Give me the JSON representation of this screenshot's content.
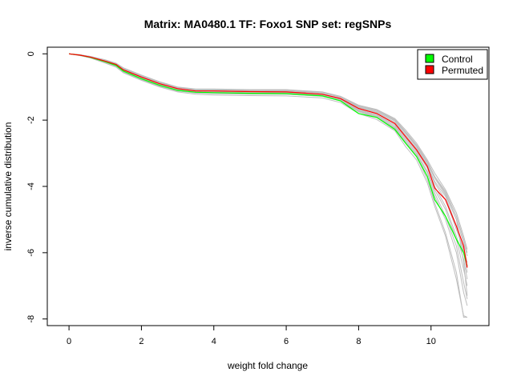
{
  "chart_data": {
    "type": "line",
    "title": "Matrix: MA0480.1 TF: Foxo1 SNP set: regSNPs",
    "xlabel": "weight fold change",
    "ylabel": "inverse cumulative distribution",
    "xlim": [
      -0.6,
      11.6
    ],
    "ylim": [
      -8.2,
      0.2
    ],
    "xticks": [
      0,
      2,
      4,
      6,
      8,
      10
    ],
    "yticks": [
      0,
      -2,
      -4,
      -6,
      -8
    ],
    "grid": false,
    "legend_position": "top-right",
    "legend": [
      {
        "label": "Control",
        "color": "#00ff00"
      },
      {
        "label": "Permuted",
        "color": "#ff0000"
      }
    ],
    "background_series": {
      "color": "#bebebe",
      "x": [
        0,
        0.3,
        0.6,
        1.0,
        1.3,
        1.5,
        2.0,
        2.5,
        3.0,
        3.5,
        4.0,
        5.0,
        6.0,
        7.0,
        7.5,
        8.0,
        8.5,
        9.0,
        9.3,
        9.6,
        9.9,
        10.1,
        10.4,
        10.7,
        10.9,
        11.0
      ],
      "lines": [
        [
          0,
          -0.04,
          -0.1,
          -0.22,
          -0.32,
          -0.48,
          -0.7,
          -0.9,
          -1.05,
          -1.12,
          -1.12,
          -1.14,
          -1.15,
          -1.22,
          -1.35,
          -1.65,
          -1.8,
          -2.1,
          -2.5,
          -2.9,
          -3.4,
          -3.9,
          -4.4,
          -5.3,
          -5.9,
          -6.3
        ],
        [
          0,
          -0.04,
          -0.12,
          -0.26,
          -0.38,
          -0.55,
          -0.78,
          -0.98,
          -1.12,
          -1.18,
          -1.2,
          -1.22,
          -1.22,
          -1.28,
          -1.42,
          -1.75,
          -1.92,
          -2.25,
          -2.7,
          -3.1,
          -3.7,
          -4.3,
          -5.0,
          -6.0,
          -7.2,
          -7.6
        ],
        [
          0,
          -0.03,
          -0.08,
          -0.18,
          -0.28,
          -0.42,
          -0.64,
          -0.84,
          -1.0,
          -1.06,
          -1.06,
          -1.08,
          -1.08,
          -1.15,
          -1.28,
          -1.55,
          -1.68,
          -1.95,
          -2.3,
          -2.7,
          -3.2,
          -3.6,
          -4.1,
          -4.8,
          -5.5,
          -5.9
        ],
        [
          0,
          -0.05,
          -0.11,
          -0.24,
          -0.35,
          -0.5,
          -0.74,
          -0.94,
          -1.08,
          -1.15,
          -1.16,
          -1.18,
          -1.19,
          -1.25,
          -1.38,
          -1.7,
          -1.86,
          -2.18,
          -2.6,
          -3.0,
          -3.55,
          -4.1,
          -4.7,
          -5.6,
          -6.5,
          -7.0
        ],
        [
          0,
          -0.03,
          -0.09,
          -0.2,
          -0.3,
          -0.45,
          -0.67,
          -0.87,
          -1.02,
          -1.09,
          -1.09,
          -1.11,
          -1.12,
          -1.18,
          -1.31,
          -1.6,
          -1.74,
          -2.02,
          -2.4,
          -2.8,
          -3.3,
          -3.75,
          -4.25,
          -5.0,
          -5.7,
          -6.1
        ],
        [
          0,
          -0.05,
          -0.13,
          -0.28,
          -0.4,
          -0.57,
          -0.8,
          -1.0,
          -1.15,
          -1.22,
          -1.24,
          -1.26,
          -1.27,
          -1.33,
          -1.47,
          -1.8,
          -1.98,
          -2.32,
          -2.8,
          -3.2,
          -3.9,
          -4.6,
          -5.5,
          -6.8,
          -7.9,
          -7.95
        ],
        [
          0,
          -0.04,
          -0.1,
          -0.21,
          -0.31,
          -0.47,
          -0.69,
          -0.89,
          -1.04,
          -1.11,
          -1.11,
          -1.13,
          -1.14,
          -1.21,
          -1.34,
          -1.62,
          -1.77,
          -2.06,
          -2.45,
          -2.85,
          -3.35,
          -3.85,
          -4.3,
          -5.2,
          -6.0,
          -6.6
        ],
        [
          0,
          -0.03,
          -0.08,
          -0.19,
          -0.29,
          -0.44,
          -0.66,
          -0.86,
          -1.01,
          -1.07,
          -1.08,
          -1.1,
          -1.1,
          -1.16,
          -1.29,
          -1.57,
          -1.7,
          -1.98,
          -2.35,
          -2.75,
          -3.25,
          -3.7,
          -4.2,
          -5.0,
          -6.3,
          -7.3
        ],
        [
          0,
          -0.04,
          -0.11,
          -0.23,
          -0.33,
          -0.49,
          -0.72,
          -0.92,
          -1.06,
          -1.13,
          -1.14,
          -1.16,
          -1.17,
          -1.23,
          -1.36,
          -1.68,
          -1.84,
          -2.14,
          -2.55,
          -2.95,
          -3.45,
          -4.0,
          -4.6,
          -5.5,
          -6.2,
          -6.8
        ],
        [
          0,
          -0.05,
          -0.12,
          -0.25,
          -0.36,
          -0.52,
          -0.75,
          -0.95,
          -1.1,
          -1.17,
          -1.18,
          -1.2,
          -1.21,
          -1.27,
          -1.4,
          -1.72,
          -1.89,
          -2.22,
          -2.65,
          -3.05,
          -3.6,
          -4.2,
          -4.9,
          -5.8,
          -6.9,
          -7.4
        ],
        [
          0,
          -0.03,
          -0.09,
          -0.19,
          -0.29,
          -0.44,
          -0.66,
          -0.86,
          -1.01,
          -1.08,
          -1.08,
          -1.1,
          -1.11,
          -1.17,
          -1.3,
          -1.58,
          -1.71,
          -2.0,
          -2.38,
          -2.78,
          -3.28,
          -3.7,
          -4.15,
          -4.9,
          -5.6,
          -6.0
        ],
        [
          0,
          -0.04,
          -0.12,
          -0.25,
          -0.37,
          -0.53,
          -0.76,
          -0.96,
          -1.11,
          -1.18,
          -1.19,
          -1.21,
          -1.22,
          -1.28,
          -1.41,
          -1.73,
          -1.9,
          -2.24,
          -2.68,
          -3.1,
          -3.8,
          -4.5,
          -5.4,
          -6.6,
          -7.95,
          -7.95
        ]
      ]
    },
    "series": [
      {
        "name": "Control",
        "color": "#00ff00",
        "x": [
          0,
          0.3,
          0.6,
          1.0,
          1.3,
          1.5,
          2.0,
          2.5,
          3.0,
          3.5,
          4.0,
          5.0,
          6.0,
          7.0,
          7.5,
          8.0,
          8.5,
          9.0,
          9.3,
          9.6,
          9.9,
          10.1,
          10.4,
          10.7,
          10.9,
          11.0
        ],
        "values": [
          0,
          -0.04,
          -0.11,
          -0.24,
          -0.35,
          -0.52,
          -0.75,
          -0.95,
          -1.1,
          -1.16,
          -1.17,
          -1.19,
          -1.2,
          -1.27,
          -1.42,
          -1.8,
          -1.92,
          -2.28,
          -2.7,
          -3.1,
          -3.7,
          -4.4,
          -4.9,
          -5.6,
          -6.0,
          -6.4
        ]
      },
      {
        "name": "Permuted",
        "color": "#ff0000",
        "x": [
          0,
          0.3,
          0.6,
          1.0,
          1.3,
          1.5,
          2.0,
          2.5,
          3.0,
          3.5,
          4.0,
          5.0,
          6.0,
          7.0,
          7.5,
          8.0,
          8.5,
          9.0,
          9.3,
          9.6,
          9.9,
          10.1,
          10.4,
          10.7,
          10.9,
          11.0
        ],
        "values": [
          0,
          -0.04,
          -0.1,
          -0.22,
          -0.32,
          -0.48,
          -0.7,
          -0.9,
          -1.05,
          -1.12,
          -1.12,
          -1.14,
          -1.15,
          -1.22,
          -1.35,
          -1.65,
          -1.8,
          -2.1,
          -2.5,
          -2.9,
          -3.4,
          -4.05,
          -4.4,
          -5.2,
          -5.8,
          -6.45
        ]
      }
    ]
  }
}
